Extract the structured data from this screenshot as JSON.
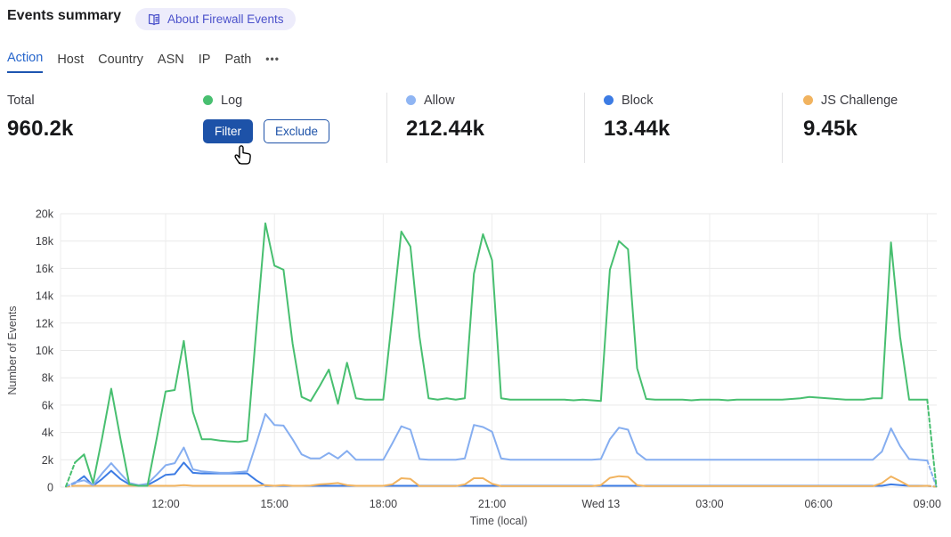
{
  "page": {
    "title": "Events summary",
    "about_badge": "About Firewall Events"
  },
  "tabs": [
    {
      "label": "Action",
      "active": true
    },
    {
      "label": "Host"
    },
    {
      "label": "Country"
    },
    {
      "label": "ASN"
    },
    {
      "label": "IP"
    },
    {
      "label": "Path"
    },
    {
      "label": "•••"
    }
  ],
  "stats": {
    "cards": [
      {
        "label": "Total",
        "value": "960.2k",
        "color": null
      },
      {
        "label": "Log",
        "color": "#48bf70",
        "buttons": [
          "Filter",
          "Exclude"
        ]
      },
      {
        "label": "Allow",
        "value": "212.44k",
        "color": "#8fb5f3"
      },
      {
        "label": "Block",
        "value": "13.44k",
        "color": "#3d7ce4"
      },
      {
        "label": "JS Challenge",
        "value": "9.45k",
        "color": "#f1b35f"
      }
    ],
    "filter_button_color": "#1d52a8"
  },
  "chart_data": {
    "type": "line",
    "xlabel": "Time (local)",
    "ylabel": "Number of Events",
    "ylim": [
      0,
      20000
    ],
    "yticks": [
      "0",
      "2k",
      "4k",
      "6k",
      "8k",
      "10k",
      "12k",
      "14k",
      "16k",
      "18k",
      "20k"
    ],
    "xticks": [
      {
        "label": "12:00",
        "index": 11
      },
      {
        "label": "15:00",
        "index": 23
      },
      {
        "label": "18:00",
        "index": 35
      },
      {
        "label": "21:00",
        "index": 47
      },
      {
        "label": "Wed 13",
        "index": 59
      },
      {
        "label": "03:00",
        "index": 71
      },
      {
        "label": "06:00",
        "index": 83
      },
      {
        "label": "09:00",
        "index": 95
      }
    ],
    "grid": true,
    "legend_position": "stat-cards-above",
    "dashed_end_segments": true,
    "x": [
      "09:15",
      "09:30",
      "09:45",
      "10:00",
      "10:15",
      "10:30",
      "10:45",
      "11:00",
      "11:15",
      "11:30",
      "11:45",
      "12:00",
      "12:15",
      "12:30",
      "12:45",
      "13:00",
      "13:15",
      "13:30",
      "13:45",
      "14:00",
      "14:15",
      "14:30",
      "14:45",
      "15:00",
      "15:15",
      "15:30",
      "15:45",
      "16:00",
      "16:15",
      "16:30",
      "16:45",
      "17:00",
      "17:15",
      "17:30",
      "17:45",
      "18:00",
      "18:15",
      "18:30",
      "18:45",
      "19:00",
      "19:15",
      "19:30",
      "19:45",
      "20:00",
      "20:15",
      "20:30",
      "20:45",
      "21:00",
      "21:15",
      "21:30",
      "21:45",
      "22:00",
      "22:15",
      "22:30",
      "22:45",
      "23:00",
      "23:15",
      "23:30",
      "23:45",
      "00:00",
      "00:15",
      "00:30",
      "00:45",
      "01:00",
      "01:15",
      "01:30",
      "01:45",
      "02:00",
      "02:15",
      "02:30",
      "02:45",
      "03:00",
      "03:15",
      "03:30",
      "03:45",
      "04:00",
      "04:15",
      "04:30",
      "04:45",
      "05:00",
      "05:15",
      "05:30",
      "05:45",
      "06:00",
      "06:15",
      "06:30",
      "06:45",
      "07:00",
      "07:15",
      "07:30",
      "07:45",
      "08:00",
      "08:15",
      "08:30",
      "08:45",
      "09:00",
      "09:15"
    ],
    "series": [
      {
        "name": "Log",
        "color": "#48bf70",
        "values": [
          50,
          1800,
          2400,
          300,
          3600,
          7200,
          3600,
          200,
          100,
          100,
          3500,
          7000,
          7100,
          10700,
          5500,
          3500,
          3500,
          3400,
          3350,
          3300,
          3400,
          11500,
          19300,
          16200,
          15900,
          10500,
          6600,
          6300,
          7400,
          8600,
          6100,
          9100,
          6500,
          6400,
          6400,
          6400,
          12500,
          18700,
          17600,
          11000,
          6500,
          6400,
          6500,
          6400,
          6500,
          15600,
          18500,
          16600,
          6500,
          6400,
          6400,
          6400,
          6400,
          6400,
          6400,
          6400,
          6350,
          6400,
          6350,
          6300,
          15900,
          18000,
          17400,
          8700,
          6450,
          6400,
          6400,
          6400,
          6400,
          6350,
          6400,
          6400,
          6400,
          6350,
          6400,
          6400,
          6400,
          6400,
          6400,
          6400,
          6450,
          6500,
          6600,
          6550,
          6500,
          6450,
          6400,
          6400,
          6400,
          6500,
          6500,
          17900,
          11000,
          6400,
          6400,
          6400,
          50
        ]
      },
      {
        "name": "Allow",
        "color": "#86aef0",
        "values": [
          50,
          350,
          500,
          150,
          1000,
          1750,
          1000,
          300,
          150,
          250,
          900,
          1600,
          1750,
          2900,
          1300,
          1150,
          1100,
          1050,
          1050,
          1100,
          1150,
          3200,
          5350,
          4550,
          4500,
          3500,
          2400,
          2100,
          2100,
          2500,
          2100,
          2650,
          2000,
          2000,
          2000,
          2000,
          3200,
          4450,
          4200,
          2050,
          2000,
          2000,
          2000,
          2000,
          2100,
          4550,
          4400,
          4050,
          2100,
          2000,
          2000,
          2000,
          2000,
          2000,
          2000,
          2000,
          2000,
          2000,
          2000,
          2050,
          3500,
          4350,
          4200,
          2500,
          2000,
          2000,
          2000,
          2000,
          2000,
          2000,
          2000,
          2000,
          2000,
          2000,
          2000,
          2000,
          2000,
          2000,
          2000,
          2000,
          2000,
          2000,
          2000,
          2000,
          2000,
          2000,
          2000,
          2000,
          2000,
          2000,
          2600,
          4300,
          3000,
          2050,
          2000,
          1950,
          50
        ]
      },
      {
        "name": "Block",
        "color": "#3d7ce4",
        "values": [
          50,
          300,
          800,
          100,
          600,
          1200,
          600,
          200,
          100,
          150,
          500,
          900,
          950,
          1800,
          1050,
          1000,
          1000,
          1000,
          1000,
          1000,
          1000,
          500,
          100,
          100,
          100,
          100,
          100,
          100,
          100,
          100,
          100,
          100,
          100,
          100,
          100,
          100,
          100,
          100,
          100,
          100,
          100,
          100,
          100,
          100,
          100,
          100,
          100,
          100,
          100,
          100,
          100,
          100,
          100,
          100,
          100,
          100,
          100,
          100,
          100,
          100,
          100,
          100,
          100,
          100,
          100,
          100,
          100,
          100,
          100,
          100,
          100,
          100,
          100,
          100,
          100,
          100,
          100,
          100,
          100,
          100,
          100,
          100,
          100,
          100,
          100,
          100,
          100,
          100,
          100,
          100,
          100,
          200,
          150,
          100,
          100,
          100,
          30
        ]
      },
      {
        "name": "JS Challenge",
        "color": "#f1b35f",
        "values": [
          30,
          100,
          100,
          100,
          100,
          100,
          100,
          100,
          100,
          100,
          100,
          100,
          100,
          150,
          100,
          100,
          100,
          100,
          100,
          100,
          100,
          100,
          150,
          100,
          150,
          100,
          100,
          120,
          200,
          250,
          300,
          150,
          100,
          100,
          100,
          100,
          200,
          650,
          600,
          80,
          80,
          80,
          80,
          80,
          200,
          650,
          650,
          250,
          70,
          70,
          70,
          70,
          70,
          70,
          70,
          70,
          70,
          70,
          70,
          150,
          680,
          800,
          750,
          150,
          70,
          70,
          70,
          70,
          70,
          70,
          70,
          70,
          70,
          70,
          70,
          70,
          70,
          70,
          70,
          70,
          70,
          70,
          70,
          70,
          70,
          70,
          70,
          70,
          70,
          70,
          300,
          780,
          450,
          80,
          80,
          100,
          30
        ]
      }
    ],
    "draw_order": [
      2,
      3,
      1,
      0
    ]
  }
}
